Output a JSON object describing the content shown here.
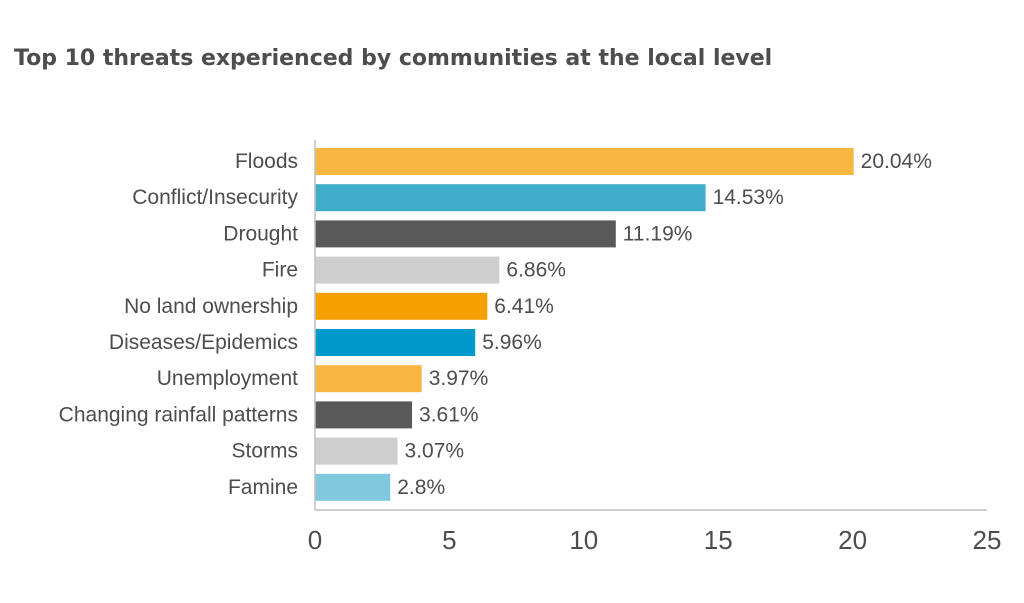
{
  "chart_data": {
    "type": "bar",
    "orientation": "horizontal",
    "title": "Top 10 threats experienced by communities at the local level",
    "categories": [
      "Floods",
      "Conflict/Insecurity",
      "Drought",
      "Fire",
      "No land ownership",
      "Diseases/Epidemics",
      "Unemployment",
      "Changing rainfall patterns",
      "Storms",
      "Famine"
    ],
    "values": [
      20.04,
      14.53,
      11.19,
      6.86,
      6.41,
      5.96,
      3.97,
      3.61,
      3.07,
      2.8
    ],
    "value_labels": [
      "20.04%",
      "14.53%",
      "11.19%",
      "6.86%",
      "6.41%",
      "5.96%",
      "3.97%",
      "3.61%",
      "3.07%",
      "2.8%"
    ],
    "colors": [
      "#f9b641",
      "#3fafc9",
      "#595959",
      "#cecece",
      "#f5a000",
      "#0099cc",
      "#f9b641",
      "#595959",
      "#cecece",
      "#7fc8dd"
    ],
    "xlim": [
      0,
      25
    ],
    "xticks": [
      0,
      5,
      10,
      15,
      20,
      25
    ],
    "xlabel": "",
    "ylabel": "",
    "grid": false,
    "legend": "none"
  }
}
